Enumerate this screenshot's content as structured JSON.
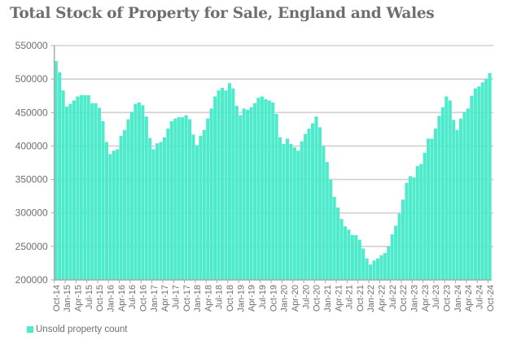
{
  "chart_data": {
    "type": "bar",
    "title": "Total Stock of Property for Sale, England and Wales",
    "xlabel": "",
    "ylabel": "",
    "ylim": [
      200000,
      550000
    ],
    "yticks": [
      200000,
      250000,
      300000,
      350000,
      400000,
      450000,
      500000,
      550000
    ],
    "ytick_labels": [
      "200000",
      "250000",
      "300000",
      "350000",
      "400000",
      "450000",
      "500000",
      "550000"
    ],
    "grid": true,
    "legend": {
      "position": "bottom-left",
      "entries": [
        "Unsold property count"
      ]
    },
    "xtick_labels": [
      "Oct-14",
      "Jan-15",
      "Apr-15",
      "Jul-15",
      "Oct-15",
      "Jan-16",
      "Apr-16",
      "Jul-16",
      "Oct-16",
      "Jan-17",
      "Apr-17",
      "Jul-17",
      "Oct-17",
      "Jan-18",
      "Apr-18",
      "Jul-18",
      "Oct-18",
      "Jan-19",
      "Apr-19",
      "Jul-19",
      "Oct-19",
      "Jan-20",
      "Apr-20",
      "Jul-20",
      "Oct-20",
      "Jan-21",
      "Apr-21",
      "Jul-21",
      "Oct-21",
      "Jan-22",
      "Apr-22",
      "Jul-22",
      "Oct-22",
      "Jan-23",
      "Apr-23",
      "Jul-23",
      "Oct-23",
      "Jan-24",
      "Apr-24",
      "Jul-24",
      "Oct-24"
    ],
    "xtick_every": 3,
    "series": [
      {
        "name": "Unsold property count",
        "color": "#4debcb",
        "start": "Oct-14",
        "frequency": "monthly",
        "values": [
          527000,
          510000,
          483000,
          459000,
          463000,
          468000,
          474000,
          476000,
          476000,
          476000,
          464000,
          464000,
          457000,
          437000,
          406000,
          388000,
          393000,
          395000,
          415000,
          424000,
          440000,
          451000,
          463000,
          465000,
          461000,
          444000,
          412000,
          395000,
          404000,
          406000,
          413000,
          426000,
          437000,
          441000,
          443000,
          443000,
          446000,
          440000,
          417000,
          401000,
          415000,
          424000,
          441000,
          456000,
          474000,
          483000,
          487000,
          483000,
          494000,
          486000,
          460000,
          446000,
          456000,
          454000,
          458000,
          464000,
          472000,
          474000,
          470000,
          468000,
          465000,
          448000,
          413000,
          403000,
          411000,
          403000,
          398000,
          393000,
          407000,
          418000,
          426000,
          434000,
          444000,
          428000,
          400000,
          376000,
          350000,
          324000,
          308000,
          291000,
          280000,
          275000,
          267000,
          267000,
          260000,
          247000,
          232000,
          223000,
          229000,
          232000,
          237000,
          240000,
          250000,
          268000,
          281000,
          299000,
          320000,
          345000,
          355000,
          353000,
          370000,
          373000,
          390000,
          411000,
          411000,
          426000,
          445000,
          458000,
          474000,
          468000,
          439000,
          424000,
          441000,
          451000,
          456000,
          475000,
          486000,
          489000,
          495000,
          500000,
          509000
        ]
      }
    ]
  },
  "colors": {
    "bar": "#4debcb",
    "text": "#6e6e6e",
    "grid": "#d0d0d0",
    "axis": "#a8a8a8"
  }
}
